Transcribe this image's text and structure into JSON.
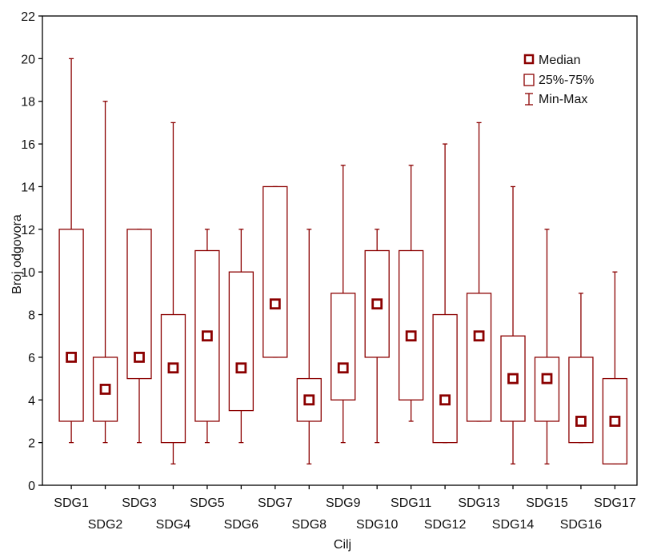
{
  "chart_data": {
    "type": "boxplot",
    "xlabel": "Cilj",
    "ylabel": "Broj odgovora",
    "ylim": [
      0,
      22
    ],
    "yticks": [
      0,
      2,
      4,
      6,
      8,
      10,
      12,
      14,
      16,
      18,
      20,
      22
    ],
    "grid": false,
    "legend_position": "top-right",
    "colors": {
      "series": "#8b0000",
      "axis": "#000000"
    },
    "legend": [
      {
        "symbol": "median-square",
        "label": "Median"
      },
      {
        "symbol": "box",
        "label": "25%-75%"
      },
      {
        "symbol": "whisker",
        "label": "Min-Max"
      }
    ],
    "categories": [
      "SDG1",
      "SDG2",
      "SDG3",
      "SDG4",
      "SDG5",
      "SDG6",
      "SDG7",
      "SDG8",
      "SDG9",
      "SDG10",
      "SDG11",
      "SDG12",
      "SDG13",
      "SDG14",
      "SDG15",
      "SDG16",
      "SDG17"
    ],
    "boxes": [
      {
        "min": 2,
        "q1": 3,
        "median": 6,
        "q3": 12,
        "max": 20
      },
      {
        "min": 2,
        "q1": 3,
        "median": 4.5,
        "q3": 6,
        "max": 18
      },
      {
        "min": 2,
        "q1": 5,
        "median": 6,
        "q3": 12,
        "max": 12
      },
      {
        "min": 1,
        "q1": 2,
        "median": 5.5,
        "q3": 8,
        "max": 17
      },
      {
        "min": 2,
        "q1": 3,
        "median": 7,
        "q3": 11,
        "max": 12
      },
      {
        "min": 2,
        "q1": 3.5,
        "median": 5.5,
        "q3": 10,
        "max": 12
      },
      {
        "min": 6,
        "q1": 6,
        "median": 8.5,
        "q3": 14,
        "max": 14
      },
      {
        "min": 1,
        "q1": 3,
        "median": 4,
        "q3": 5,
        "max": 12
      },
      {
        "min": 2,
        "q1": 4,
        "median": 5.5,
        "q3": 9,
        "max": 15
      },
      {
        "min": 2,
        "q1": 6,
        "median": 8.5,
        "q3": 11,
        "max": 12
      },
      {
        "min": 3,
        "q1": 4,
        "median": 7,
        "q3": 11,
        "max": 15
      },
      {
        "min": 2,
        "q1": 2,
        "median": 4,
        "q3": 8,
        "max": 16
      },
      {
        "min": 3,
        "q1": 3,
        "median": 7,
        "q3": 9,
        "max": 17
      },
      {
        "min": 1,
        "q1": 3,
        "median": 5,
        "q3": 7,
        "max": 14
      },
      {
        "min": 1,
        "q1": 3,
        "median": 5,
        "q3": 6,
        "max": 12
      },
      {
        "min": 2,
        "q1": 2,
        "median": 3,
        "q3": 6,
        "max": 9
      },
      {
        "min": 1,
        "q1": 1,
        "median": 3,
        "q3": 5,
        "max": 10
      }
    ]
  }
}
